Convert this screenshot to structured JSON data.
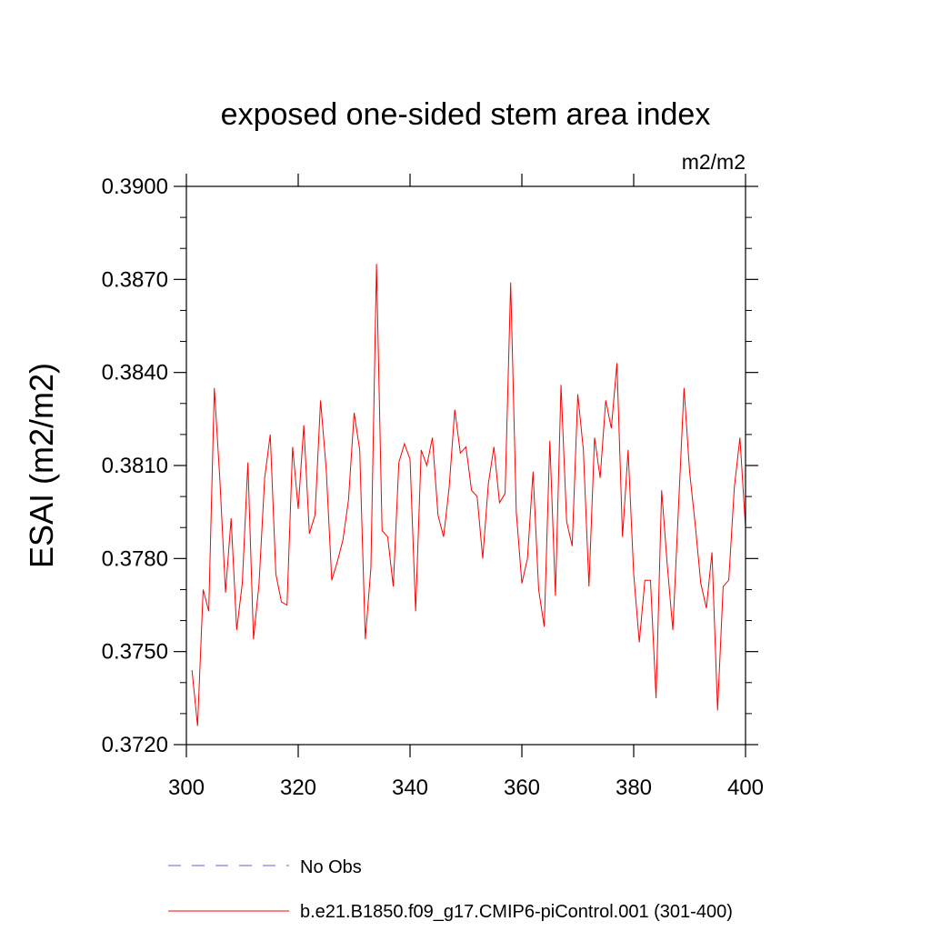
{
  "chart_data": {
    "type": "line",
    "title": "exposed one-sided stem area index",
    "units": "m2/m2",
    "ylabel": "ESAI  (m2/m2)",
    "xlabel": "",
    "xlim": [
      300,
      400
    ],
    "ylim": [
      0.372,
      0.39
    ],
    "xticks": [
      300,
      320,
      340,
      360,
      380,
      400
    ],
    "xtick_labels": [
      "300",
      "320",
      "340",
      "360",
      "380",
      "400"
    ],
    "yticks": [
      0.372,
      0.375,
      0.378,
      0.381,
      0.384,
      0.387,
      0.39
    ],
    "ytick_labels": [
      "0.3720",
      "0.3750",
      "0.3780",
      "0.3810",
      "0.3840",
      "0.3870",
      "0.3900"
    ],
    "legend": [
      {
        "label": "No Obs",
        "color": "#6a5acd",
        "dash": "dashed"
      },
      {
        "label": "b.e21.B1850.f09_g17.CMIP6-piControl.001 (301-400)",
        "color": "#ff0000",
        "dash": "solid"
      }
    ],
    "series": [
      {
        "name": "b.e21.B1850.f09_g17.CMIP6-piControl.001 (301-400)",
        "color": "#ff0000",
        "x": [
          301,
          302,
          303,
          304,
          305,
          306,
          307,
          308,
          309,
          310,
          311,
          312,
          313,
          314,
          315,
          316,
          317,
          318,
          319,
          320,
          321,
          322,
          323,
          324,
          325,
          326,
          327,
          328,
          329,
          330,
          331,
          332,
          333,
          334,
          335,
          336,
          337,
          338,
          339,
          340,
          341,
          342,
          343,
          344,
          345,
          346,
          347,
          348,
          349,
          350,
          351,
          352,
          353,
          354,
          355,
          356,
          357,
          358,
          359,
          360,
          361,
          362,
          363,
          364,
          365,
          366,
          367,
          368,
          369,
          370,
          371,
          372,
          373,
          374,
          375,
          376,
          377,
          378,
          379,
          380,
          381,
          382,
          383,
          384,
          385,
          386,
          387,
          388,
          389,
          390,
          391,
          392,
          393,
          394,
          395,
          396,
          397,
          398,
          399,
          400
        ],
        "values": [
          0.3744,
          0.3726,
          0.377,
          0.3763,
          0.3835,
          0.3805,
          0.3769,
          0.3793,
          0.3757,
          0.3772,
          0.3811,
          0.3754,
          0.3772,
          0.3806,
          0.382,
          0.3775,
          0.3766,
          0.3765,
          0.3816,
          0.3796,
          0.3823,
          0.3788,
          0.3794,
          0.3831,
          0.3809,
          0.3773,
          0.3779,
          0.3786,
          0.3799,
          0.3827,
          0.3815,
          0.3754,
          0.3777,
          0.3875,
          0.3789,
          0.3787,
          0.3771,
          0.3811,
          0.3817,
          0.3812,
          0.3763,
          0.3815,
          0.381,
          0.3819,
          0.3794,
          0.3787,
          0.3803,
          0.3828,
          0.3814,
          0.3816,
          0.3802,
          0.38,
          0.378,
          0.3804,
          0.3816,
          0.3798,
          0.3801,
          0.3869,
          0.3795,
          0.3772,
          0.378,
          0.3808,
          0.377,
          0.3758,
          0.3818,
          0.3768,
          0.3836,
          0.3792,
          0.3784,
          0.3833,
          0.3815,
          0.3771,
          0.3819,
          0.3806,
          0.3831,
          0.3822,
          0.3843,
          0.3787,
          0.3815,
          0.3775,
          0.3753,
          0.3773,
          0.3773,
          0.3735,
          0.3802,
          0.3778,
          0.3757,
          0.3796,
          0.3835,
          0.3808,
          0.3791,
          0.3772,
          0.3764,
          0.3782,
          0.3731,
          0.3771,
          0.3773,
          0.3803,
          0.3819,
          0.379
        ]
      }
    ]
  }
}
